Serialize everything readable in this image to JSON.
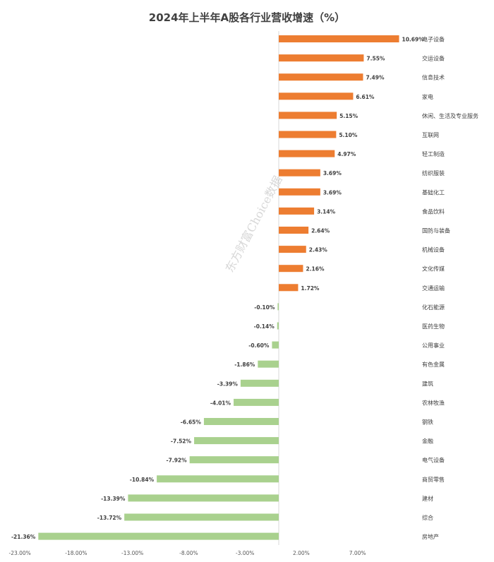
{
  "chart_data": {
    "type": "bar",
    "orientation": "horizontal",
    "title": "2024年上半年A股各行业营收增速（%）",
    "categories": [
      "电子设备",
      "交运设备",
      "信息技术",
      "家电",
      "休闲、生活及专业服务",
      "互联网",
      "轻工制造",
      "纺织服装",
      "基础化工",
      "食品饮料",
      "国防与装备",
      "机械设备",
      "文化传媒",
      "交通运输",
      "化石能源",
      "医药生物",
      "公用事业",
      "有色金属",
      "建筑",
      "农林牧渔",
      "钢铁",
      "金融",
      "电气设备",
      "商贸零售",
      "建材",
      "综合",
      "房地产"
    ],
    "values": [
      10.69,
      7.55,
      7.49,
      6.61,
      5.15,
      5.1,
      4.97,
      3.69,
      3.69,
      3.14,
      2.64,
      2.43,
      2.16,
      1.72,
      -0.1,
      -0.14,
      -0.6,
      -1.86,
      -3.39,
      -4.01,
      -6.65,
      -7.52,
      -7.92,
      -10.84,
      -13.39,
      -13.72,
      -21.36
    ],
    "data_labels": [
      "10.69%",
      "7.55%",
      "7.49%",
      "6.61%",
      "5.15%",
      "5.10%",
      "4.97%",
      "3.69%",
      "3.69%",
      "3.14%",
      "2.64%",
      "2.43%",
      "2.16%",
      "1.72%",
      "-0.10%",
      "-0.14%",
      "-0.60%",
      "-1.86%",
      "-3.39%",
      "-4.01%",
      "-6.65%",
      "-7.52%",
      "-7.92%",
      "-10.84%",
      "-13.39%",
      "-13.72%",
      "-21.36%"
    ],
    "xlim": [
      -23,
      12
    ],
    "xticks": [
      -23,
      -18,
      -13,
      -8,
      -3,
      2,
      7
    ],
    "xtick_labels": [
      "-23.00%",
      "-18.00%",
      "-13.00%",
      "-8.00%",
      "-3.00%",
      "2.00%",
      "7.00%"
    ],
    "positive_color": "#ED7D31",
    "negative_color": "#A9D18E",
    "grid": false,
    "legend": "none"
  },
  "watermark": "东方财富Choice数据"
}
